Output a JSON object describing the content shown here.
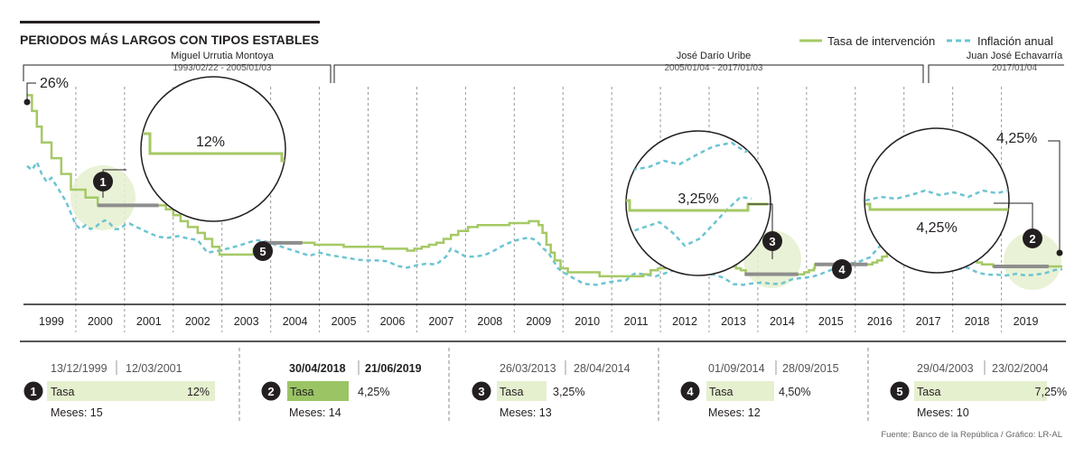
{
  "chart_data": {
    "type": "line",
    "title": "PERIODOS MÁS LARGOS CON TIPOS ESTABLES",
    "legend": {
      "placement": "top-right",
      "entries": [
        {
          "name": "Tasa de intervención",
          "color": "#a5c965",
          "style": "solid"
        },
        {
          "name": "Inflación anual",
          "color": "#6cc4d2",
          "style": "dashed"
        }
      ]
    },
    "x_range": [
      1998.5,
      2019.75
    ],
    "y_range": [
      0,
      28
    ],
    "years": [
      "1999",
      "2000",
      "2001",
      "2002",
      "2003",
      "2004",
      "2005",
      "2006",
      "2007",
      "2008",
      "2009",
      "2010",
      "2011",
      "2012",
      "2013",
      "2014",
      "2015",
      "2016",
      "2017",
      "2018",
      "2019"
    ],
    "series": [
      {
        "name": "Tasa de intervención",
        "color": "#a5c965",
        "style": "step",
        "points": [
          [
            1998.5,
            26
          ],
          [
            1998.6,
            24
          ],
          [
            1998.7,
            22
          ],
          [
            1998.8,
            20
          ],
          [
            1999.0,
            18
          ],
          [
            1999.2,
            16
          ],
          [
            1999.4,
            14
          ],
          [
            1999.7,
            13
          ],
          [
            1999.95,
            12
          ],
          [
            2001.2,
            12
          ],
          [
            2001.35,
            11.5
          ],
          [
            2001.5,
            10.75
          ],
          [
            2001.65,
            10
          ],
          [
            2001.8,
            9.25
          ],
          [
            2002.0,
            8.5
          ],
          [
            2002.15,
            7.75
          ],
          [
            2002.3,
            6.75
          ],
          [
            2002.45,
            5.75
          ],
          [
            2003.0,
            5.75
          ],
          [
            2003.15,
            6.5
          ],
          [
            2003.33,
            7.25
          ],
          [
            2004.15,
            7.25
          ],
          [
            2004.4,
            7.0
          ],
          [
            2005.0,
            6.75
          ],
          [
            2005.8,
            6.5
          ],
          [
            2006.3,
            6.25
          ],
          [
            2006.45,
            6.5
          ],
          [
            2006.6,
            6.75
          ],
          [
            2006.75,
            7.0
          ],
          [
            2006.9,
            7.25
          ],
          [
            2007.05,
            7.75
          ],
          [
            2007.2,
            8.25
          ],
          [
            2007.35,
            8.75
          ],
          [
            2007.55,
            9.25
          ],
          [
            2007.75,
            9.5
          ],
          [
            2008.4,
            9.75
          ],
          [
            2008.8,
            10.0
          ],
          [
            2009.0,
            9.5
          ],
          [
            2009.08,
            8.5
          ],
          [
            2009.16,
            7.0
          ],
          [
            2009.25,
            6.0
          ],
          [
            2009.33,
            5.0
          ],
          [
            2009.45,
            4.0
          ],
          [
            2009.6,
            3.5
          ],
          [
            2010.25,
            3.0
          ],
          [
            2011.05,
            3.0
          ],
          [
            2011.15,
            3.25
          ],
          [
            2011.3,
            3.75
          ],
          [
            2011.45,
            4.0
          ],
          [
            2011.6,
            4.5
          ],
          [
            2011.75,
            4.75
          ],
          [
            2012.0,
            5.0
          ],
          [
            2012.15,
            5.25
          ],
          [
            2012.5,
            5.0
          ],
          [
            2012.65,
            4.75
          ],
          [
            2012.8,
            4.5
          ],
          [
            2012.95,
            4.25
          ],
          [
            2013.05,
            4.0
          ],
          [
            2013.15,
            3.75
          ],
          [
            2013.25,
            3.25
          ],
          [
            2014.33,
            3.25
          ],
          [
            2014.45,
            3.5
          ],
          [
            2014.55,
            3.75
          ],
          [
            2014.65,
            4.0
          ],
          [
            2014.67,
            4.5
          ],
          [
            2015.75,
            4.5
          ],
          [
            2015.85,
            4.75
          ],
          [
            2015.95,
            5.0
          ],
          [
            2016.05,
            5.5
          ],
          [
            2016.15,
            6.0
          ],
          [
            2016.25,
            7.0
          ],
          [
            2016.35,
            7.5
          ],
          [
            2016.5,
            7.75
          ],
          [
            2016.9,
            7.75
          ],
          [
            2017.0,
            7.5
          ],
          [
            2017.1,
            7.0
          ],
          [
            2017.25,
            6.5
          ],
          [
            2017.4,
            6.0
          ],
          [
            2017.55,
            5.75
          ],
          [
            2017.7,
            5.5
          ],
          [
            2017.85,
            5.0
          ],
          [
            2018.0,
            4.75
          ],
          [
            2018.1,
            4.5
          ],
          [
            2018.33,
            4.25
          ],
          [
            2019.75,
            4.25
          ]
        ]
      },
      {
        "name": "Inflación anual",
        "color": "#6cc4d2",
        "style": "dashed",
        "points": [
          [
            1998.5,
            17.0
          ],
          [
            1998.6,
            16.5
          ],
          [
            1998.7,
            17.5
          ],
          [
            1998.8,
            16.0
          ],
          [
            1998.9,
            15.0
          ],
          [
            1999.0,
            15.5
          ],
          [
            1999.1,
            14.5
          ],
          [
            1999.2,
            13.5
          ],
          [
            1999.3,
            12.5
          ],
          [
            1999.4,
            11.0
          ],
          [
            1999.5,
            9.5
          ],
          [
            1999.6,
            9.0
          ],
          [
            1999.7,
            9.5
          ],
          [
            1999.8,
            9.0
          ],
          [
            1999.9,
            9.2
          ],
          [
            2000.0,
            9.8
          ],
          [
            2000.1,
            10.1
          ],
          [
            2000.2,
            9.7
          ],
          [
            2000.3,
            9.0
          ],
          [
            2000.4,
            9.0
          ],
          [
            2000.5,
            9.5
          ],
          [
            2000.6,
            9.7
          ],
          [
            2000.7,
            9.4
          ],
          [
            2000.8,
            9.1
          ],
          [
            2000.9,
            8.8
          ],
          [
            2001.0,
            8.5
          ],
          [
            2001.2,
            8.0
          ],
          [
            2001.4,
            7.9
          ],
          [
            2001.6,
            8.1
          ],
          [
            2001.8,
            7.8
          ],
          [
            2002.0,
            7.6
          ],
          [
            2002.2,
            6.0
          ],
          [
            2002.4,
            6.2
          ],
          [
            2002.6,
            6.5
          ],
          [
            2002.8,
            6.8
          ],
          [
            2003.0,
            7.2
          ],
          [
            2003.2,
            7.6
          ],
          [
            2003.4,
            7.4
          ],
          [
            2003.6,
            7.0
          ],
          [
            2003.8,
            6.6
          ],
          [
            2004.0,
            6.2
          ],
          [
            2004.1,
            6.0
          ],
          [
            2004.3,
            5.6
          ],
          [
            2004.5,
            6.0
          ],
          [
            2004.7,
            5.7
          ],
          [
            2004.9,
            5.5
          ],
          [
            2005.1,
            5.3
          ],
          [
            2005.3,
            5.1
          ],
          [
            2005.5,
            5.0
          ],
          [
            2005.7,
            5.0
          ],
          [
            2005.9,
            4.9
          ],
          [
            2006.1,
            4.3
          ],
          [
            2006.3,
            4.1
          ],
          [
            2006.5,
            4.4
          ],
          [
            2006.7,
            4.6
          ],
          [
            2006.9,
            4.5
          ],
          [
            2007.0,
            5.0
          ],
          [
            2007.1,
            5.5
          ],
          [
            2007.2,
            6.5
          ],
          [
            2007.3,
            6.2
          ],
          [
            2007.5,
            5.5
          ],
          [
            2007.7,
            5.5
          ],
          [
            2007.9,
            5.7
          ],
          [
            2008.0,
            6.0
          ],
          [
            2008.1,
            6.3
          ],
          [
            2008.3,
            7.0
          ],
          [
            2008.5,
            7.5
          ],
          [
            2008.7,
            7.8
          ],
          [
            2008.8,
            7.9
          ],
          [
            2008.9,
            7.7
          ],
          [
            2009.0,
            7.2
          ],
          [
            2009.1,
            6.5
          ],
          [
            2009.2,
            6.0
          ],
          [
            2009.3,
            5.0
          ],
          [
            2009.4,
            4.0
          ],
          [
            2009.5,
            3.5
          ],
          [
            2009.6,
            3.2
          ],
          [
            2009.7,
            2.8
          ],
          [
            2009.8,
            2.5
          ],
          [
            2009.9,
            2.1
          ],
          [
            2010.0,
            2.0
          ],
          [
            2010.2,
            1.9
          ],
          [
            2010.4,
            2.2
          ],
          [
            2010.6,
            2.4
          ],
          [
            2010.8,
            2.5
          ],
          [
            2010.9,
            3.1
          ],
          [
            2011.0,
            3.4
          ],
          [
            2011.2,
            3.2
          ],
          [
            2011.4,
            3.0
          ],
          [
            2011.6,
            3.4
          ],
          [
            2011.8,
            3.8
          ],
          [
            2012.0,
            3.7
          ],
          [
            2012.2,
            3.5
          ],
          [
            2012.4,
            3.3
          ],
          [
            2012.6,
            3.2
          ],
          [
            2012.8,
            2.8
          ],
          [
            2013.0,
            2.0
          ],
          [
            2013.2,
            1.9
          ],
          [
            2013.4,
            2.1
          ],
          [
            2013.6,
            2.2
          ],
          [
            2013.8,
            2.0
          ],
          [
            2014.0,
            2.1
          ],
          [
            2014.2,
            2.6
          ],
          [
            2014.4,
            2.8
          ],
          [
            2014.6,
            2.9
          ],
          [
            2014.8,
            3.3
          ],
          [
            2015.0,
            3.8
          ],
          [
            2015.2,
            4.4
          ],
          [
            2015.4,
            4.6
          ],
          [
            2015.6,
            4.9
          ],
          [
            2015.8,
            5.4
          ],
          [
            2016.0,
            6.8
          ],
          [
            2016.2,
            7.9
          ],
          [
            2016.4,
            8.5
          ],
          [
            2016.6,
            8.2
          ],
          [
            2016.8,
            7.3
          ],
          [
            2017.0,
            5.5
          ],
          [
            2017.2,
            4.7
          ],
          [
            2017.4,
            4.0
          ],
          [
            2017.6,
            3.9
          ],
          [
            2017.8,
            4.1
          ],
          [
            2018.0,
            3.5
          ],
          [
            2018.2,
            3.2
          ],
          [
            2018.4,
            3.2
          ],
          [
            2018.6,
            3.1
          ],
          [
            2018.8,
            3.3
          ],
          [
            2019.0,
            3.1
          ],
          [
            2019.2,
            3.2
          ],
          [
            2019.4,
            3.4
          ],
          [
            2019.6,
            3.8
          ],
          [
            2019.75,
            3.9
          ]
        ]
      }
    ],
    "annotations": {
      "start_label": "26%",
      "end_label": "4,25%",
      "zoom_labels": [
        "12%",
        "3,25%",
        "4,25%"
      ]
    },
    "governors": [
      {
        "name": "Miguel Urrutia Montoya",
        "dates": "1993/02/22 - 2005/01/03"
      },
      {
        "name": "José Darío Uribe",
        "dates": "2005/01/04 - 2017/01/03"
      },
      {
        "name": "Juan José Echavarría",
        "dates": "2017/01/04"
      }
    ],
    "periods": [
      {
        "number": "1",
        "start": "13/12/1999",
        "end": "12/03/2001",
        "rate_label": "Tasa",
        "rate": "12%",
        "months": "Meses: 15",
        "rate_value": 12,
        "start_x": 1999.95,
        "end_x": 2001.2
      },
      {
        "number": "2",
        "start": "30/04/2018",
        "end": "21/06/2019",
        "rate_label": "Tasa",
        "rate": "4,25%",
        "months": "Meses: 14",
        "rate_value": 4.25,
        "start_x": 2018.33,
        "end_x": 2019.47
      },
      {
        "number": "3",
        "start": "26/03/2013",
        "end": "28/04/2014",
        "rate_label": "Tasa",
        "rate": "3,25%",
        "months": "Meses: 13",
        "rate_value": 3.25,
        "start_x": 2013.23,
        "end_x": 2014.33
      },
      {
        "number": "4",
        "start": "01/09/2014",
        "end": "28/09/2015",
        "rate_label": "Tasa",
        "rate": "4,50%",
        "months": "Meses: 12",
        "rate_value": 4.5,
        "start_x": 2014.67,
        "end_x": 2015.75
      },
      {
        "number": "5",
        "start": "29/04/2003",
        "end": "23/02/2004",
        "rate_label": "Tasa",
        "rate": "7,25%",
        "months": "Meses: 10",
        "rate_value": 7.25,
        "start_x": 2003.33,
        "end_x": 2004.15
      }
    ],
    "source": "Fuente: Banco de la República / Gráfico: LR-AL"
  }
}
